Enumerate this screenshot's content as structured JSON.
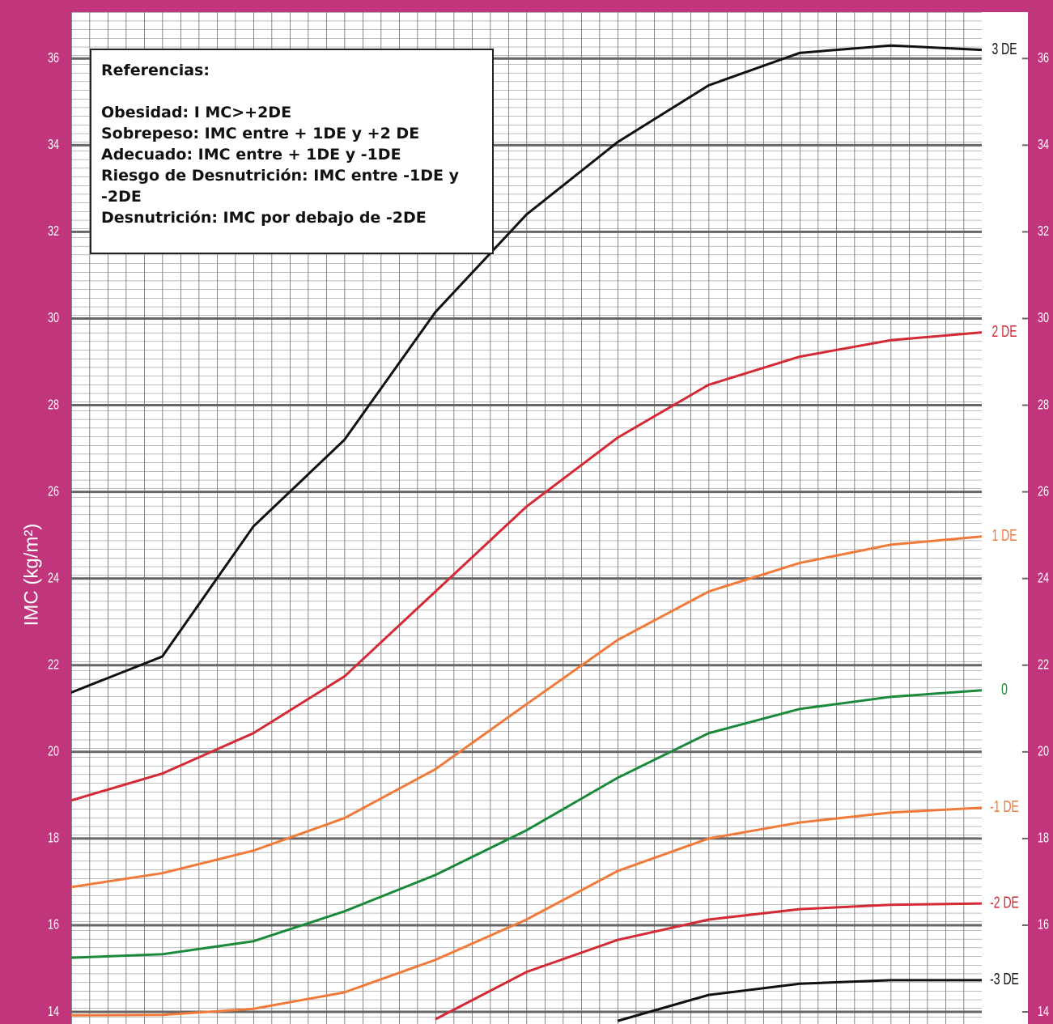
{
  "chart_data": {
    "type": "line",
    "y_label": "IMC (kg/m²)",
    "categories": [
      null,
      null,
      null,
      null,
      null,
      null,
      null,
      null,
      null,
      null,
      null
    ],
    "ylim": [
      13.72,
      37.07
    ],
    "yticks": [
      14,
      16,
      18,
      20,
      22,
      24,
      26,
      28,
      30,
      32,
      34,
      36
    ],
    "grid": true,
    "series": [
      {
        "name": "3 DE",
        "color": "#111111",
        "values": [
          21.37,
          22.2,
          25.2,
          27.2,
          30.15,
          32.4,
          34.07,
          35.38,
          36.13,
          36.3,
          36.2
        ]
      },
      {
        "name": "2 DE",
        "color": "#d42a35",
        "values": [
          18.88,
          19.5,
          20.43,
          21.74,
          23.7,
          25.66,
          27.25,
          28.47,
          29.12,
          29.5,
          29.68
        ]
      },
      {
        "name": "1 DE",
        "color": "#f07a3a",
        "values": [
          16.88,
          17.2,
          17.72,
          18.47,
          19.6,
          21.1,
          22.58,
          23.7,
          24.36,
          24.78,
          24.97
        ]
      },
      {
        "name": "0",
        "color": "#1a8a3a",
        "values": [
          15.25,
          15.33,
          15.63,
          16.32,
          17.16,
          18.19,
          19.4,
          20.43,
          20.99,
          21.27,
          21.42
        ]
      },
      {
        "name": "-1 DE",
        "color": "#f07a3a",
        "values": [
          13.92,
          13.93,
          14.07,
          14.45,
          15.2,
          16.13,
          17.25,
          18.0,
          18.37,
          18.6,
          18.71
        ]
      },
      {
        "name": "-2 DE",
        "color": "#d42a35",
        "values": [
          null,
          null,
          null,
          null,
          13.83,
          14.92,
          15.66,
          16.13,
          16.37,
          16.47,
          16.5
        ]
      },
      {
        "name": "-3 DE",
        "color": "#111111",
        "values": [
          null,
          null,
          null,
          null,
          null,
          null,
          13.79,
          14.39,
          14.65,
          14.73,
          14.73
        ]
      }
    ],
    "annotation": {
      "title": "Referencias:",
      "lines": [
        "Obesidad: I MC>+2DE",
        "Sobrepeso: IMC entre + 1DE y +2 DE",
        "Adecuado: IMC entre + 1DE y -1DE",
        "Riesgo de Desnutrición: IMC entre -1DE y -2DE",
        "Desnutrición: IMC por debajo de -2DE"
      ]
    }
  }
}
